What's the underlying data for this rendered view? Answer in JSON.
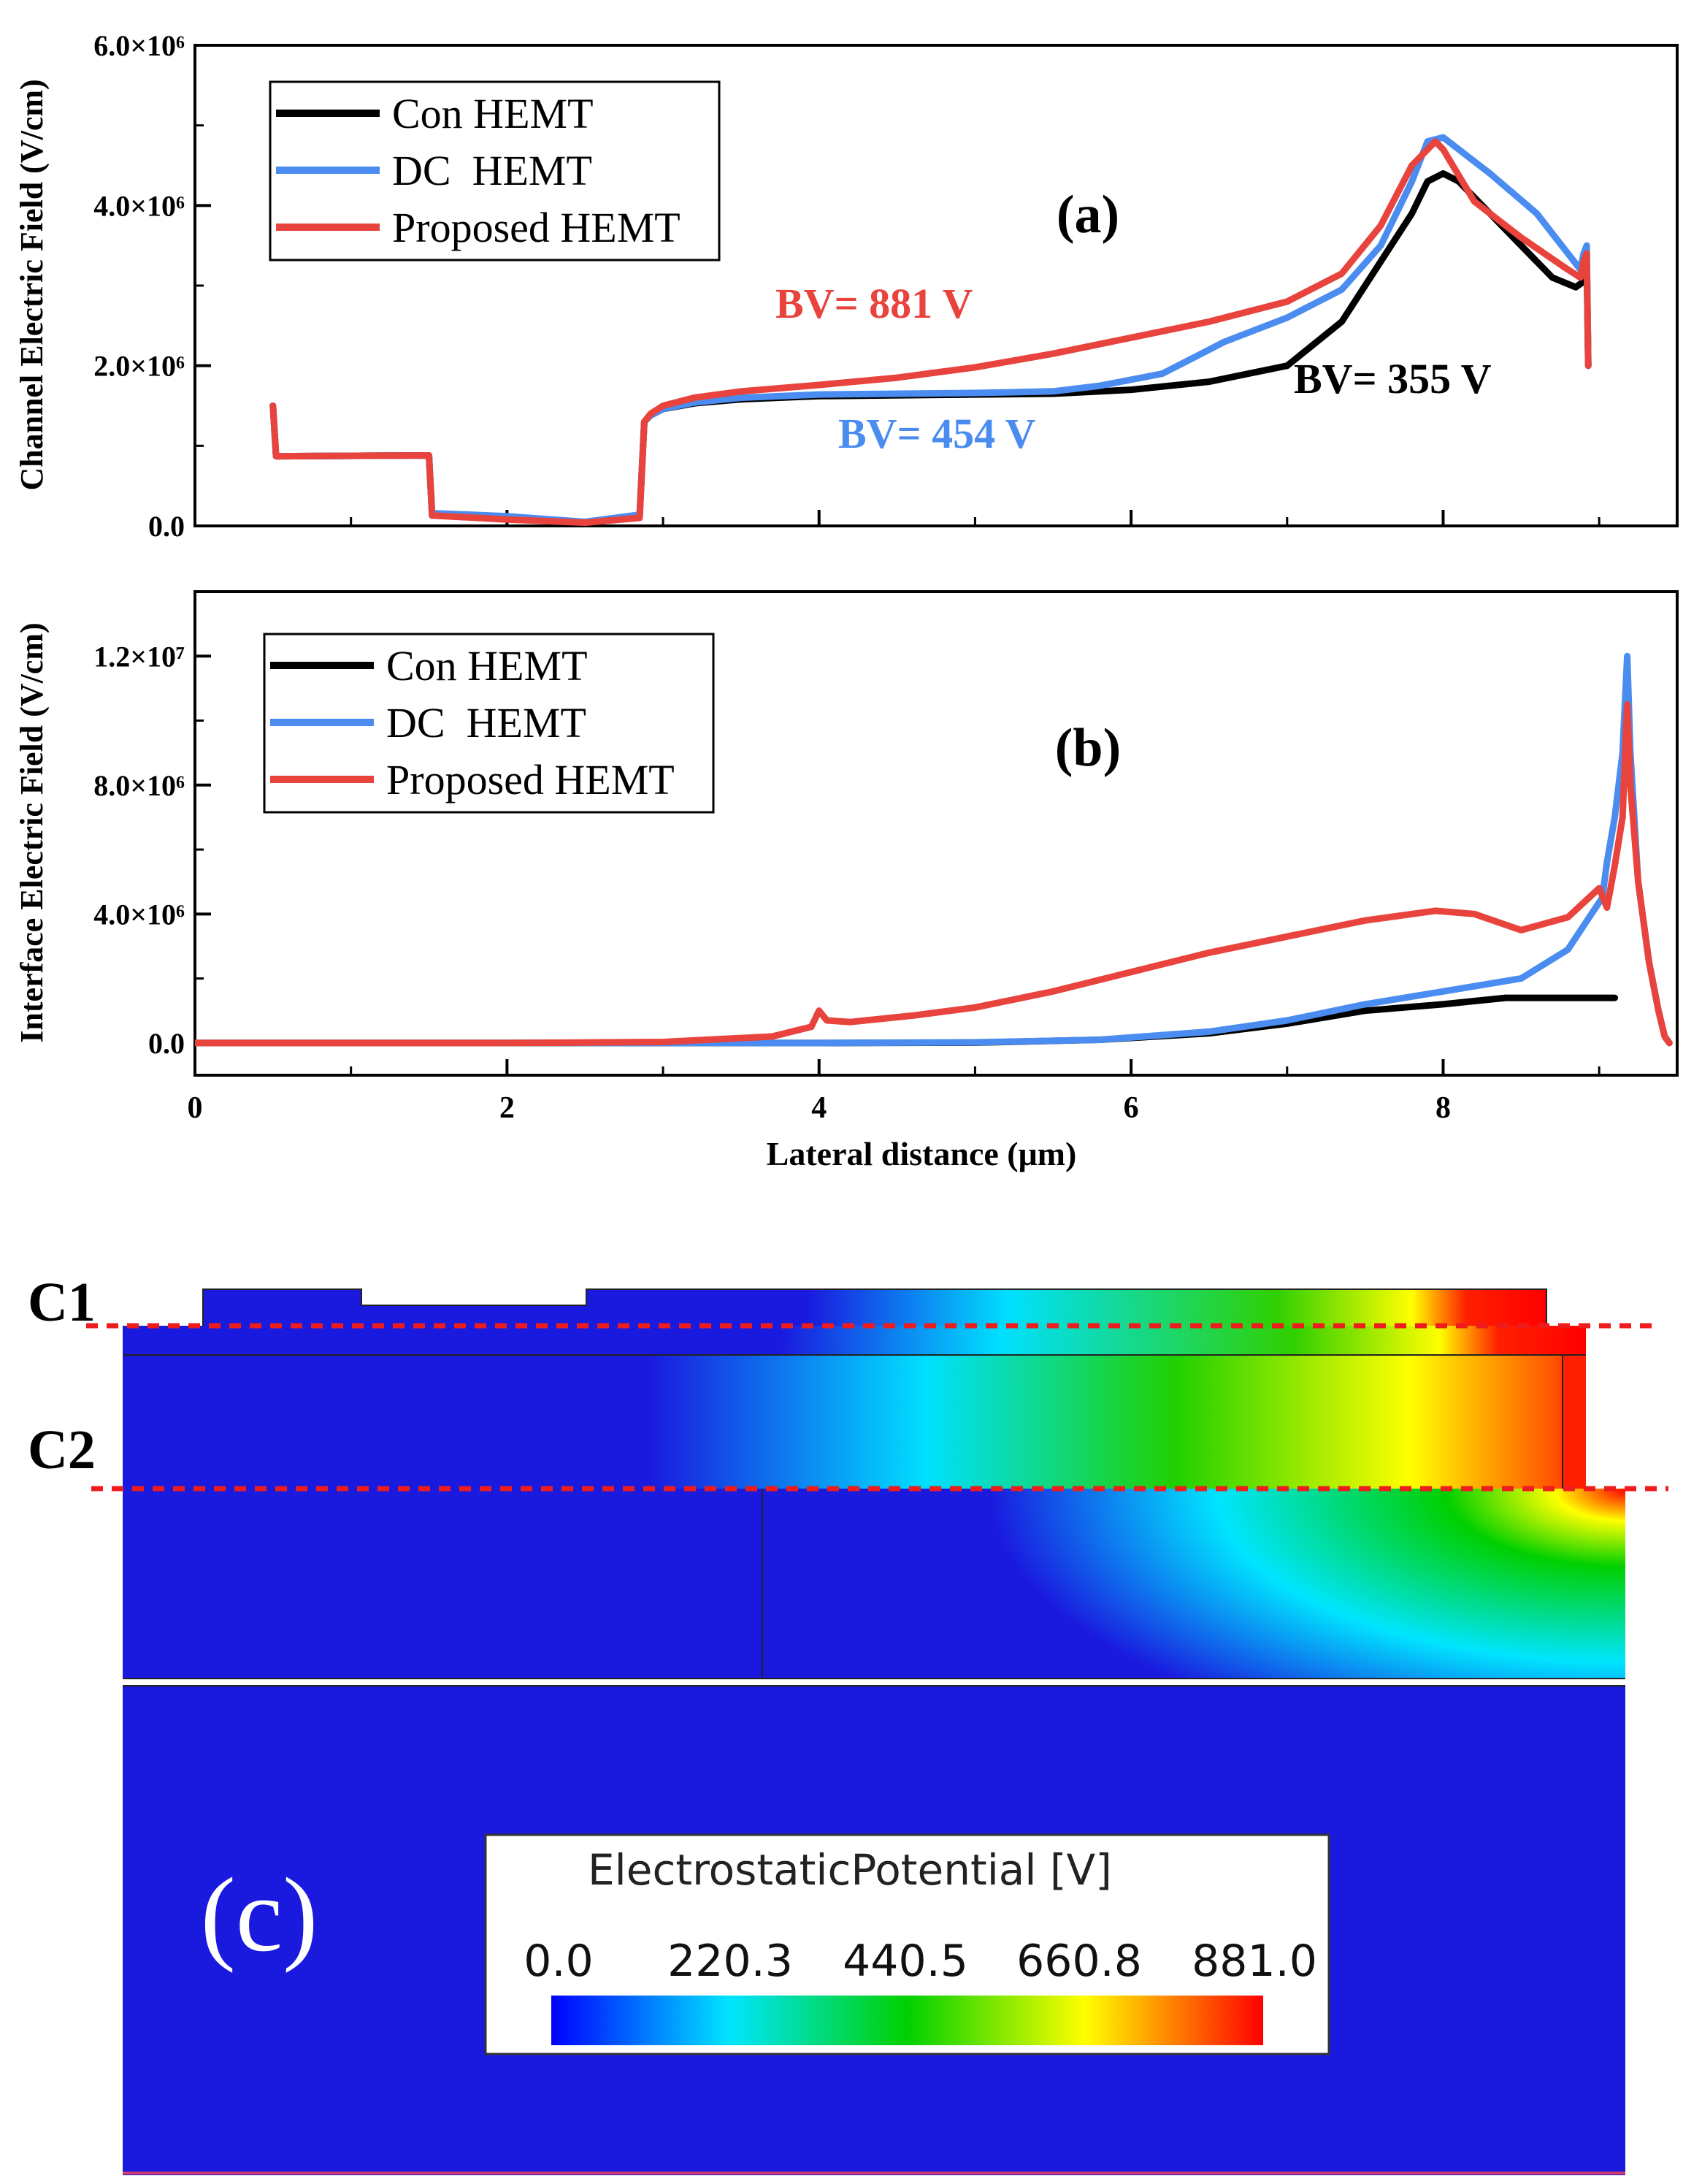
{
  "colors": {
    "con": "#000000",
    "dc": "#4a8cf0",
    "proposed": "#e8433c",
    "guide": "#ee1c1c",
    "device_bg": "#1a1adf"
  },
  "chart_data": [
    {
      "panel": "(a)",
      "type": "line",
      "ylabel": "Channel Electric Field (V/cm)",
      "xlim": [
        0,
        9.5
      ],
      "ylim": [
        0,
        6000000
      ],
      "ytick_labels": [
        "0.0",
        "2.0×10⁶",
        "4.0×10⁶",
        "6.0×10⁶"
      ],
      "legend": [
        "Con HEMT",
        "DC  HEMT",
        "Proposed HEMT"
      ],
      "annotations": {
        "red": "BV= 881 V",
        "blue": "BV= 454 V",
        "black": "BV= 355 V"
      },
      "series": [
        {
          "name": "Con HEMT",
          "color_key": "con",
          "x": [
            0.5,
            0.52,
            1.5,
            1.52,
            2.0,
            2.5,
            2.85,
            2.88,
            2.92,
            3.0,
            3.2,
            3.5,
            4.0,
            5.0,
            5.5,
            6.0,
            6.5,
            7.0,
            7.35,
            7.6,
            7.8,
            7.9,
            8.0,
            8.1,
            8.3,
            8.5,
            8.7,
            8.85,
            8.9,
            8.92,
            8.93
          ],
          "y": [
            1500000,
            870000,
            880000,
            130000,
            90000,
            40000,
            120000,
            1300000,
            1380000,
            1460000,
            1530000,
            1580000,
            1620000,
            1640000,
            1650000,
            1700000,
            1800000,
            2000000,
            2550000,
            3300000,
            3900000,
            4300000,
            4400000,
            4300000,
            3900000,
            3500000,
            3100000,
            2980000,
            3050000,
            3300000,
            2000000
          ]
        },
        {
          "name": "DC  HEMT",
          "color_key": "dc",
          "x": [
            0.5,
            0.52,
            1.5,
            1.52,
            2.0,
            2.5,
            2.85,
            2.88,
            2.92,
            3.0,
            3.2,
            3.5,
            4.0,
            5.0,
            5.5,
            5.8,
            6.2,
            6.6,
            7.0,
            7.35,
            7.6,
            7.8,
            7.9,
            8.0,
            8.3,
            8.6,
            8.8,
            8.88,
            8.9,
            8.92,
            8.93
          ],
          "y": [
            1500000,
            870000,
            880000,
            160000,
            120000,
            50000,
            140000,
            1300000,
            1380000,
            1460000,
            1540000,
            1600000,
            1640000,
            1660000,
            1680000,
            1750000,
            1900000,
            2300000,
            2600000,
            2950000,
            3500000,
            4300000,
            4800000,
            4850000,
            4400000,
            3900000,
            3400000,
            3200000,
            3400000,
            3500000,
            2000000
          ]
        },
        {
          "name": "Proposed HEMT",
          "color_key": "proposed",
          "x": [
            0.5,
            0.52,
            1.5,
            1.52,
            2.0,
            2.5,
            2.85,
            2.88,
            2.92,
            3.0,
            3.2,
            3.5,
            4.0,
            4.5,
            5.0,
            5.5,
            6.0,
            6.5,
            7.0,
            7.35,
            7.6,
            7.8,
            7.95,
            8.0,
            8.2,
            8.5,
            8.8,
            8.88,
            8.9,
            8.92,
            8.93
          ],
          "y": [
            1500000,
            870000,
            880000,
            130000,
            80000,
            40000,
            100000,
            1300000,
            1400000,
            1500000,
            1600000,
            1680000,
            1760000,
            1850000,
            1980000,
            2150000,
            2350000,
            2550000,
            2800000,
            3150000,
            3750000,
            4500000,
            4800000,
            4700000,
            4050000,
            3600000,
            3200000,
            3100000,
            3300000,
            3400000,
            2000000
          ]
        }
      ]
    },
    {
      "panel": "(b)",
      "type": "line",
      "ylabel": "Interface Electric Field (V/cm)",
      "xlabel": "Lateral distance (μm)",
      "xlim": [
        0,
        9.5
      ],
      "ylim": [
        -1000000,
        14000000
      ],
      "xtick_labels": [
        "0",
        "2",
        "4",
        "6",
        "8"
      ],
      "ytick_labels": [
        "0.0",
        "4.0×10⁶",
        "8.0×10⁶",
        "1.2×10⁷"
      ],
      "legend": [
        "Con HEMT",
        "DC  HEMT",
        "Proposed HEMT"
      ],
      "series": [
        {
          "name": "Con HEMT",
          "color_key": "con",
          "x": [
            0,
            2,
            4,
            5,
            5.8,
            6.5,
            7.0,
            7.5,
            8.0,
            8.4,
            8.8,
            9.0,
            9.1
          ],
          "y": [
            0,
            0,
            0,
            10000,
            100000,
            300000,
            600000,
            1000000,
            1200000,
            1400000,
            1400000,
            1400000,
            1400000
          ]
        },
        {
          "name": "DC  HEMT",
          "color_key": "dc",
          "x": [
            0,
            2,
            4,
            5,
            5.8,
            6.5,
            7.0,
            7.5,
            8.0,
            8.5,
            8.8,
            8.95,
            9.02,
            9.05,
            9.1,
            9.15,
            9.18,
            9.2,
            9.25,
            9.32,
            9.38,
            9.42,
            9.45
          ],
          "y": [
            0,
            0,
            0,
            20000,
            100000,
            350000,
            700000,
            1200000,
            1600000,
            2000000,
            2900000,
            4000000,
            4500000,
            5600000,
            7000000,
            9000000,
            12000000,
            9000000,
            5000000,
            2500000,
            1000000,
            200000,
            0
          ]
        },
        {
          "name": "Proposed HEMT",
          "color_key": "proposed",
          "x": [
            0,
            2,
            3,
            3.7,
            3.95,
            4.0,
            4.05,
            4.2,
            4.6,
            5.0,
            5.5,
            6.0,
            6.5,
            7.0,
            7.5,
            7.95,
            8.2,
            8.5,
            8.8,
            9.0,
            9.05,
            9.1,
            9.15,
            9.18,
            9.2,
            9.25,
            9.32,
            9.38,
            9.42,
            9.45
          ],
          "y": [
            0,
            0,
            30000,
            200000,
            500000,
            1000000,
            700000,
            650000,
            850000,
            1100000,
            1600000,
            2200000,
            2800000,
            3300000,
            3800000,
            4100000,
            4000000,
            3500000,
            3900000,
            4800000,
            4200000,
            5500000,
            7000000,
            10500000,
            8000000,
            5000000,
            2500000,
            1000000,
            200000,
            0
          ]
        }
      ]
    },
    {
      "panel": "(c)",
      "type": "heatmap",
      "title": "ElectrostaticPotential [V]",
      "colorbar_ticks": [
        "0.0",
        "220.3",
        "440.5",
        "660.8",
        "881.0"
      ],
      "range": [
        0.0,
        881.0
      ],
      "cutline_labels": [
        "C1",
        "C2"
      ]
    }
  ]
}
